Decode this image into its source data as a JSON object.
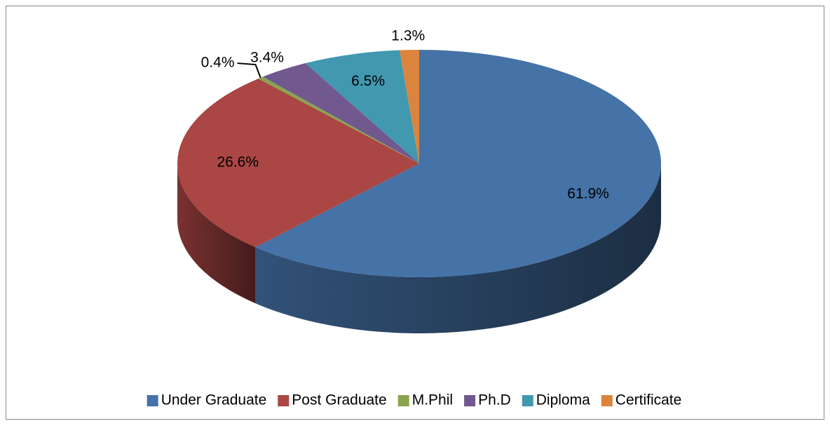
{
  "chart_data": {
    "type": "pie",
    "categories": [
      "Under Graduate",
      "Post Graduate",
      "M.Phil",
      "Ph.D",
      "Diploma",
      "Certificate"
    ],
    "values": [
      61.9,
      26.6,
      0.4,
      3.4,
      6.5,
      1.3
    ],
    "value_labels": [
      "61.9%",
      "26.6%",
      "0.4%",
      "3.4%",
      "6.5%",
      "1.3%"
    ],
    "colors": [
      "#4572a7",
      "#aa4643",
      "#89a54e",
      "#71588f",
      "#4198af",
      "#db843d"
    ],
    "legend": "bottom"
  }
}
